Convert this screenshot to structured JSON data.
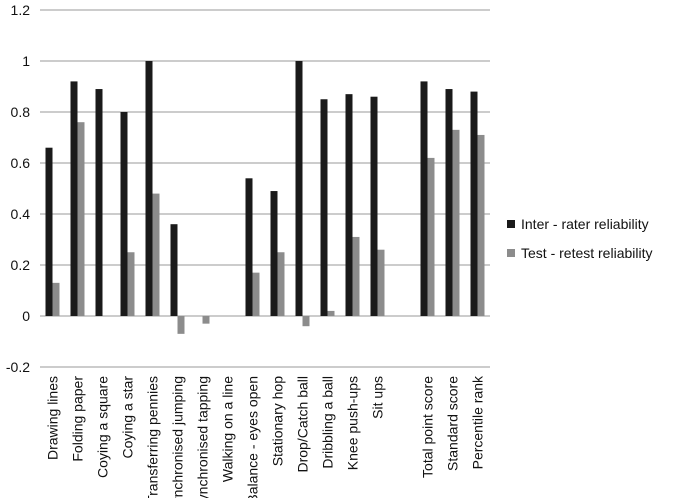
{
  "chart_data": {
    "type": "bar",
    "title": "",
    "xlabel": "",
    "ylabel": "",
    "ylim": [
      -0.2,
      1.2
    ],
    "yticks": [
      "-0.2",
      "0",
      "0.2",
      "0.4",
      "0.6",
      "0.8",
      "1",
      "1.2"
    ],
    "grid": true,
    "legend_position": "right",
    "categories": [
      "Drawing lines",
      "Folding paper",
      "Coying a square",
      "Coying a star",
      "Transferring pennies",
      "Synchronised jumping",
      "Synchronised tapping",
      "Walking on a line",
      "Balance - eyes open",
      "Stationary hop",
      "Drop/Catch ball",
      "Dribbling a ball",
      "Knee push-ups",
      "Sit ups",
      "",
      "Total point score",
      "Standard score",
      "Percentile rank"
    ],
    "series": [
      {
        "name": "Inter - rater reliability",
        "color": "#1a1a1a",
        "values": [
          0.66,
          0.92,
          0.89,
          0.8,
          1.0,
          0.36,
          null,
          null,
          0.54,
          0.49,
          1.0,
          0.85,
          0.87,
          0.86,
          null,
          0.92,
          0.89,
          0.88
        ]
      },
      {
        "name": "Test - retest reliability",
        "color": "#8c8c8c",
        "values": [
          0.13,
          0.76,
          null,
          0.25,
          0.48,
          -0.07,
          -0.03,
          null,
          0.17,
          0.25,
          -0.04,
          0.02,
          0.31,
          0.26,
          null,
          0.62,
          0.73,
          0.71
        ]
      }
    ]
  }
}
